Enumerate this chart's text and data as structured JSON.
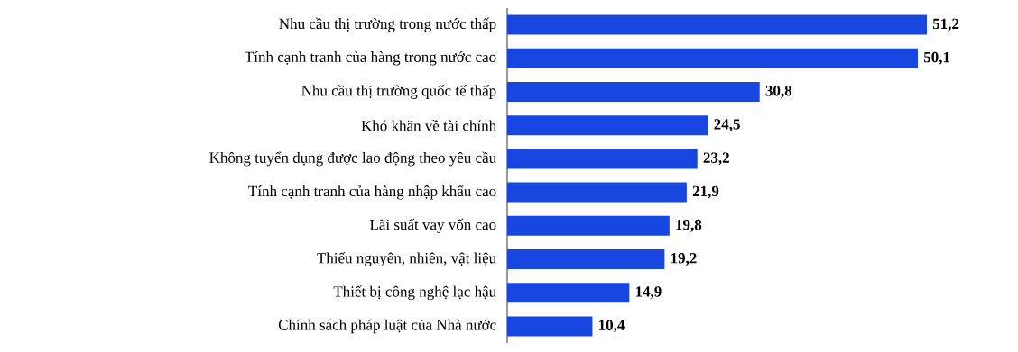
{
  "chart_data": {
    "type": "bar",
    "orientation": "horizontal",
    "color": "#1846e0",
    "categories": [
      "Nhu cầu thị trường trong nước thấp",
      "Tính cạnh tranh của hàng trong nước cao",
      "Nhu cầu thị trường quốc tế thấp",
      "Khó khăn về tài chính",
      "Không tuyển dụng được lao động theo yêu cầu",
      "Tính cạnh tranh của hàng nhập khẩu cao",
      "Lãi suất vay vốn cao",
      "Thiếu nguyên, nhiên, vật liệu",
      "Thiết bị công nghệ lạc hậu",
      "Chính sách pháp luật của Nhà nước"
    ],
    "values": [
      51.2,
      50.1,
      30.8,
      24.5,
      23.2,
      21.9,
      19.8,
      19.2,
      14.9,
      10.4
    ],
    "value_labels": [
      "51,2",
      "50,1",
      "30,8",
      "24,5",
      "23,2",
      "21,9",
      "19,8",
      "19,2",
      "14,9",
      "10,4"
    ]
  }
}
